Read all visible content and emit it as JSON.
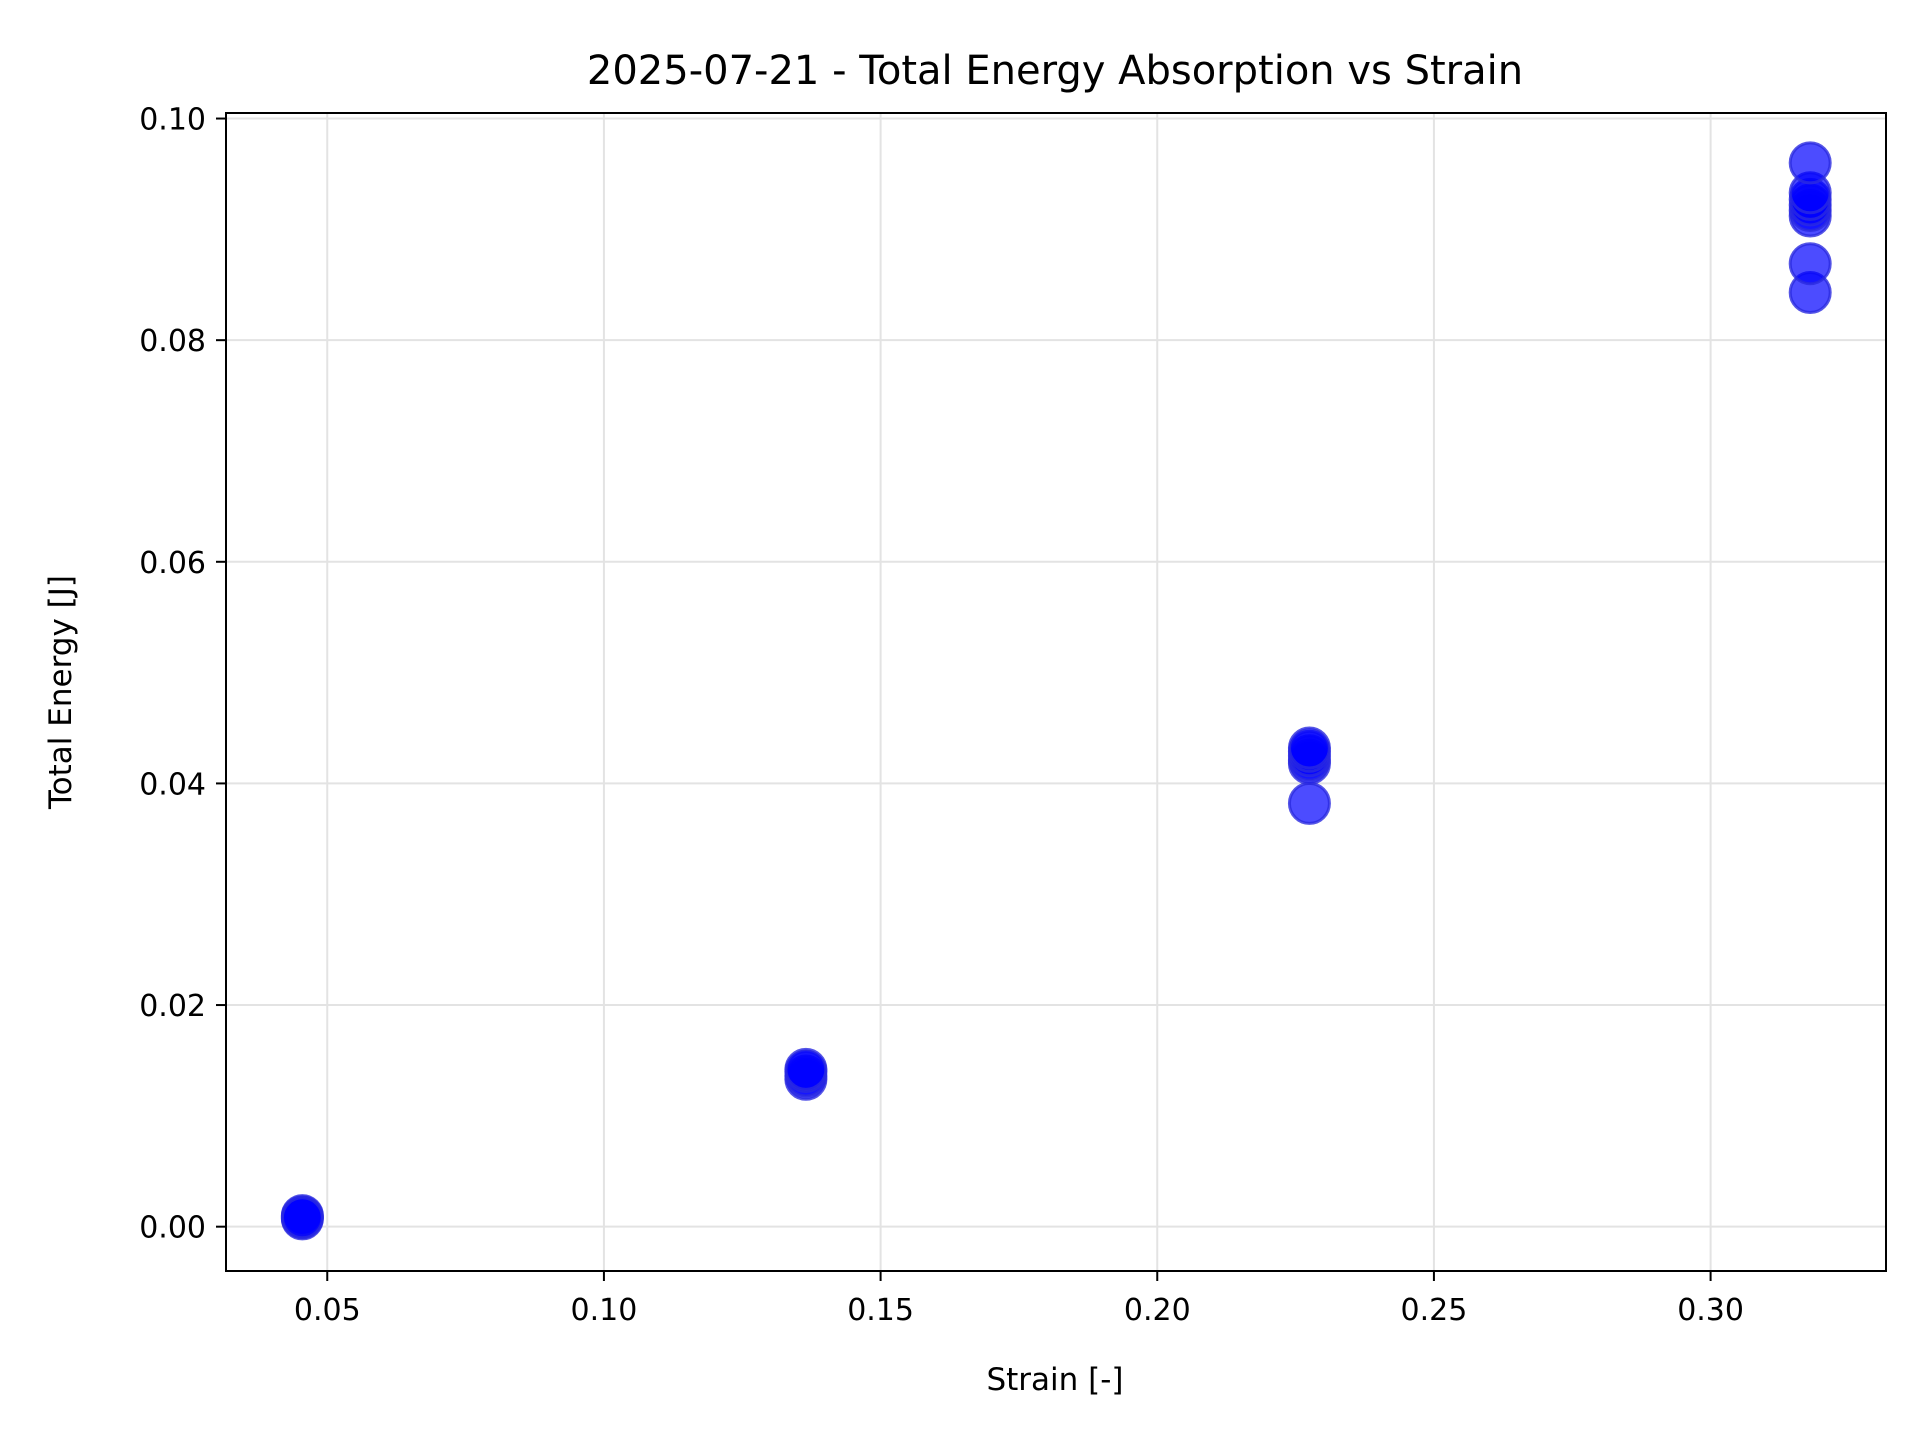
{
  "chart_data": {
    "type": "scatter",
    "title": "2025-07-21 - Total Energy Absorption vs Strain",
    "xlabel": "Strain [-]",
    "ylabel": "Total Energy [J]",
    "xlim": [
      0.0317,
      0.3317
    ],
    "ylim": [
      -0.004,
      0.1005
    ],
    "x_ticks": [
      0.05,
      0.1,
      0.15,
      0.2,
      0.25,
      0.3
    ],
    "x_tick_labels": [
      "0.05",
      "0.10",
      "0.15",
      "0.20",
      "0.25",
      "0.30"
    ],
    "y_ticks": [
      0.0,
      0.02,
      0.04,
      0.06,
      0.08,
      0.1
    ],
    "y_tick_labels": [
      "0.00",
      "0.02",
      "0.04",
      "0.06",
      "0.08",
      "0.10"
    ],
    "grid": true,
    "marker_color": "#0000ff",
    "marker_edge_color": "#2a2ae0",
    "marker_alpha": 0.7,
    "points": [
      {
        "x": 0.0455,
        "y": 0.0007
      },
      {
        "x": 0.0455,
        "y": 0.0009
      },
      {
        "x": 0.0455,
        "y": 0.001
      },
      {
        "x": 0.0455,
        "y": 0.0008
      },
      {
        "x": 0.1365,
        "y": 0.0133
      },
      {
        "x": 0.1365,
        "y": 0.0136
      },
      {
        "x": 0.1365,
        "y": 0.014
      },
      {
        "x": 0.1365,
        "y": 0.0142
      },
      {
        "x": 0.2275,
        "y": 0.0382
      },
      {
        "x": 0.2275,
        "y": 0.0418
      },
      {
        "x": 0.2275,
        "y": 0.0421
      },
      {
        "x": 0.2275,
        "y": 0.0425
      },
      {
        "x": 0.2275,
        "y": 0.0429
      },
      {
        "x": 0.2275,
        "y": 0.0432
      },
      {
        "x": 0.318,
        "y": 0.0843
      },
      {
        "x": 0.318,
        "y": 0.0869
      },
      {
        "x": 0.318,
        "y": 0.0912
      },
      {
        "x": 0.318,
        "y": 0.0917
      },
      {
        "x": 0.318,
        "y": 0.0922
      },
      {
        "x": 0.318,
        "y": 0.0927
      },
      {
        "x": 0.318,
        "y": 0.0933
      },
      {
        "x": 0.318,
        "y": 0.096
      }
    ]
  }
}
